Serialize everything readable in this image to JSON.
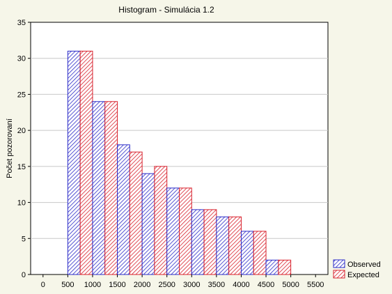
{
  "chart_data": {
    "type": "bar",
    "title": "Histogram - Simulácia 1.2",
    "xlabel": "",
    "ylabel": "Počet pozorovaní",
    "ylim": [
      0,
      35
    ],
    "yticks": [
      0,
      5,
      10,
      15,
      20,
      25,
      30,
      35
    ],
    "xlim": [
      -250,
      5750
    ],
    "xticks": [
      0,
      500,
      1000,
      1500,
      2000,
      2500,
      3000,
      3500,
      4000,
      4500,
      5000,
      5500
    ],
    "bin_width": 500,
    "bin_starts": [
      500,
      1000,
      1500,
      2000,
      2500,
      3000,
      3500,
      4000,
      4500
    ],
    "grid": "horizontal",
    "legend_position": "bottom-right",
    "series": [
      {
        "name": "Observed",
        "values": [
          31,
          24,
          18,
          14,
          12,
          9,
          8,
          6,
          2
        ],
        "color": "#2b2bc8"
      },
      {
        "name": "Expected",
        "values": [
          31,
          24,
          17,
          15,
          12,
          9,
          8,
          6,
          2
        ],
        "color": "#d8202c"
      }
    ]
  }
}
